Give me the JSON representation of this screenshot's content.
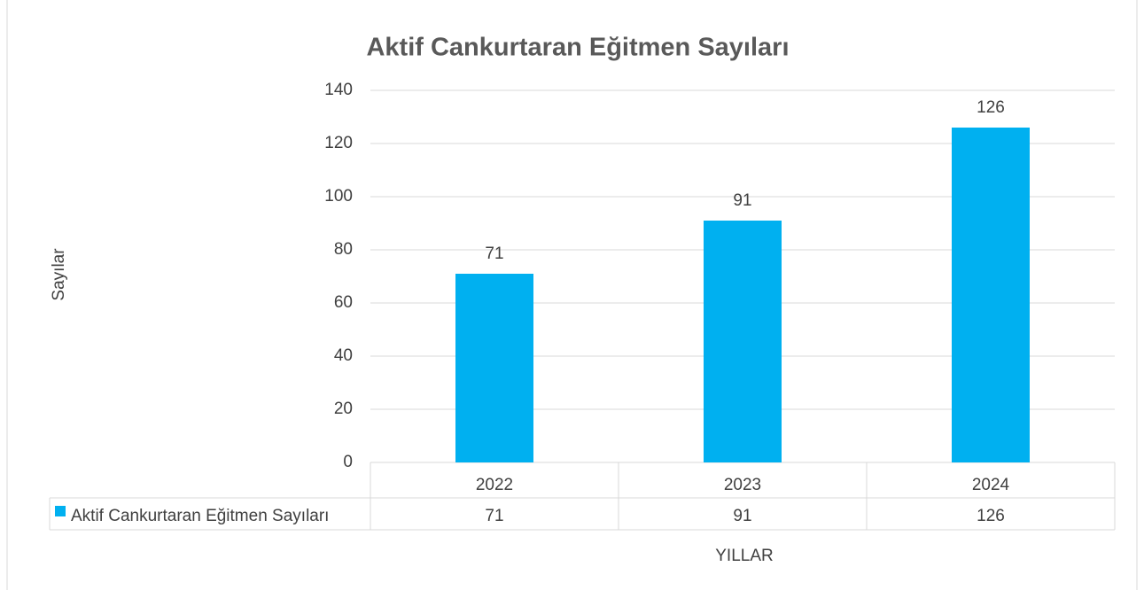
{
  "chart_data": {
    "type": "bar",
    "title": "Aktif Cankurtaran Eğitmen Sayıları",
    "x_label": "YILLAR",
    "y_label": "Sayılar",
    "categories": [
      "2022",
      "2023",
      "2024"
    ],
    "series": [
      {
        "name": "Aktif Cankurtaran Eğitmen Sayıları",
        "color": "#00b0f0",
        "values": [
          71,
          91,
          126
        ]
      }
    ],
    "ylim": [
      0,
      140
    ],
    "yticks": [
      0,
      20,
      40,
      60,
      80,
      100,
      120,
      140
    ],
    "grid": true,
    "data_labels": true,
    "data_table": true
  }
}
